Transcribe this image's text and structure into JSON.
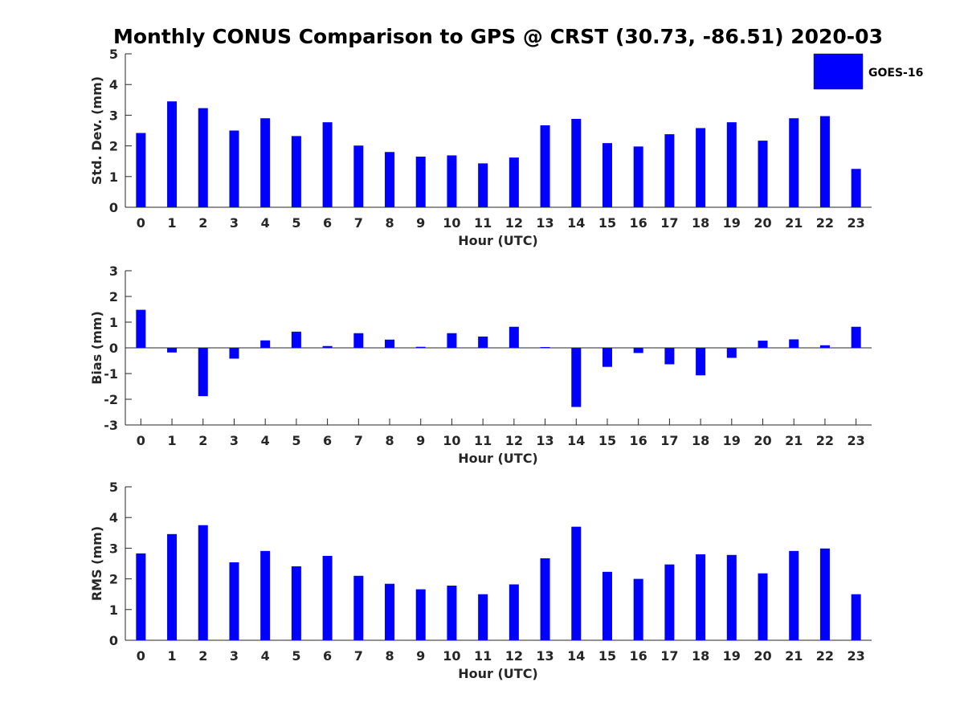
{
  "figure": {
    "title": "Monthly CONUS Comparison to GPS @ CRST (30.73, -86.51) 2020-03",
    "legend": {
      "label": "GOES-16",
      "color": "#0000ff",
      "placement": "top-right"
    }
  },
  "chart_data": [
    {
      "type": "bar",
      "categories": [
        "0",
        "1",
        "2",
        "3",
        "4",
        "5",
        "6",
        "7",
        "8",
        "9",
        "10",
        "11",
        "12",
        "13",
        "14",
        "15",
        "16",
        "17",
        "18",
        "19",
        "20",
        "21",
        "22",
        "23"
      ],
      "series": [
        {
          "name": "GOES-16",
          "color": "#0000ff",
          "values": [
            2.42,
            3.45,
            3.23,
            2.5,
            2.9,
            2.32,
            2.77,
            2.01,
            1.8,
            1.65,
            1.69,
            1.43,
            1.62,
            2.67,
            2.88,
            2.09,
            1.98,
            2.38,
            2.58,
            2.77,
            2.17,
            2.9,
            2.97,
            1.25
          ]
        }
      ],
      "xlabel": "Hour (UTC)",
      "ylabel": "Std. Dev. (mm)",
      "xlim": [
        -0.5,
        23.5
      ],
      "ylim": [
        0,
        5
      ],
      "yticks": [
        "0",
        "1",
        "2",
        "3",
        "4",
        "5"
      ],
      "grid": false
    },
    {
      "type": "bar",
      "categories": [
        "0",
        "1",
        "2",
        "3",
        "4",
        "5",
        "6",
        "7",
        "8",
        "9",
        "10",
        "11",
        "12",
        "13",
        "14",
        "15",
        "16",
        "17",
        "18",
        "19",
        "20",
        "21",
        "22",
        "23"
      ],
      "series": [
        {
          "name": "GOES-16",
          "color": "#0000ff",
          "values": [
            1.48,
            -0.18,
            -1.88,
            -0.42,
            0.29,
            0.63,
            0.07,
            0.57,
            0.32,
            0.04,
            0.57,
            0.44,
            0.82,
            0.03,
            -2.3,
            -0.74,
            -0.2,
            -0.64,
            -1.07,
            -0.39,
            0.28,
            0.33,
            0.1,
            0.82
          ]
        }
      ],
      "xlabel": "Hour (UTC)",
      "ylabel": "Bias (mm)",
      "xlim": [
        -0.5,
        23.5
      ],
      "ylim": [
        -3,
        3
      ],
      "yticks": [
        "-3",
        "-2",
        "-1",
        "0",
        "1",
        "2",
        "3"
      ],
      "grid": false
    },
    {
      "type": "bar",
      "categories": [
        "0",
        "1",
        "2",
        "3",
        "4",
        "5",
        "6",
        "7",
        "8",
        "9",
        "10",
        "11",
        "12",
        "13",
        "14",
        "15",
        "16",
        "17",
        "18",
        "19",
        "20",
        "21",
        "22",
        "23"
      ],
      "series": [
        {
          "name": "GOES-16",
          "color": "#0000ff",
          "values": [
            2.83,
            3.46,
            3.75,
            2.54,
            2.91,
            2.41,
            2.75,
            2.1,
            1.84,
            1.66,
            1.78,
            1.5,
            1.82,
            2.67,
            3.7,
            2.23,
            2.0,
            2.47,
            2.8,
            2.78,
            2.18,
            2.91,
            2.99,
            1.5
          ]
        }
      ],
      "xlabel": "Hour (UTC)",
      "ylabel": "RMS (mm)",
      "xlim": [
        -0.5,
        23.5
      ],
      "ylim": [
        0,
        5
      ],
      "yticks": [
        "0",
        "1",
        "2",
        "3",
        "4",
        "5"
      ],
      "grid": false
    }
  ]
}
